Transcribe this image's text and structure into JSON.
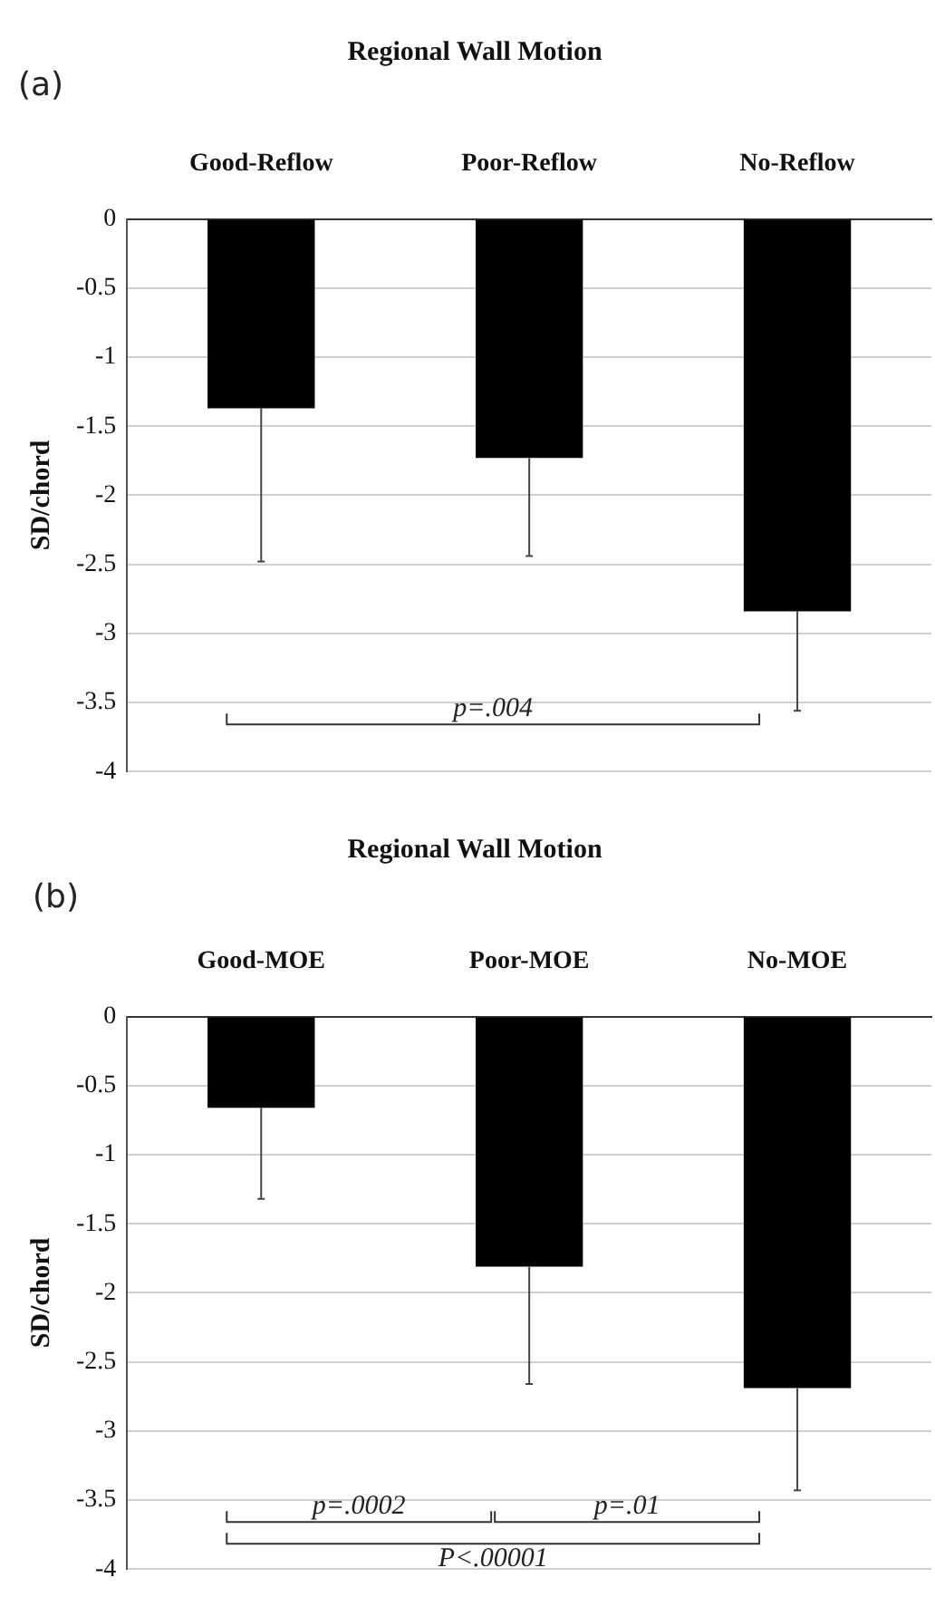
{
  "chart_data": [
    {
      "type": "bar",
      "title": "Regional Wall Motion",
      "ylabel": "SD/chord",
      "categories": [
        "Good-Reflow",
        "Poor-Reflow",
        "No-Reflow"
      ],
      "values": [
        -1.37,
        -1.73,
        -2.84
      ],
      "errors": [
        [
          -2.48,
          -1.37
        ],
        [
          -2.44,
          -1.73
        ],
        [
          -3.56,
          -2.84
        ]
      ],
      "color": "#000000",
      "ylim": [
        -4,
        0
      ],
      "yticks": [
        0,
        -0.5,
        -1,
        -1.5,
        -2,
        -2.5,
        -3,
        -3.5,
        -4
      ],
      "grid": "y",
      "annotations": [
        "(a)",
        "p=.004"
      ]
    },
    {
      "type": "bar",
      "title": "Regional Wall Motion",
      "ylabel": "SD/chord",
      "categories": [
        "Good-MOE",
        "Poor-MOE",
        "No-MOE"
      ],
      "values": [
        -0.66,
        -1.81,
        -2.69
      ],
      "errors": [
        [
          -1.32,
          -0.66
        ],
        [
          -2.66,
          -1.81
        ],
        [
          -3.43,
          -2.69
        ]
      ],
      "color": "#000000",
      "ylim": [
        -4,
        0
      ],
      "yticks": [
        0,
        -0.5,
        -1,
        -1.5,
        -2,
        -2.5,
        -3,
        -3.5,
        -4
      ],
      "grid": "y",
      "annotations": [
        "(b)",
        "p=.0002",
        "p=.01",
        "P<.00001"
      ]
    }
  ]
}
